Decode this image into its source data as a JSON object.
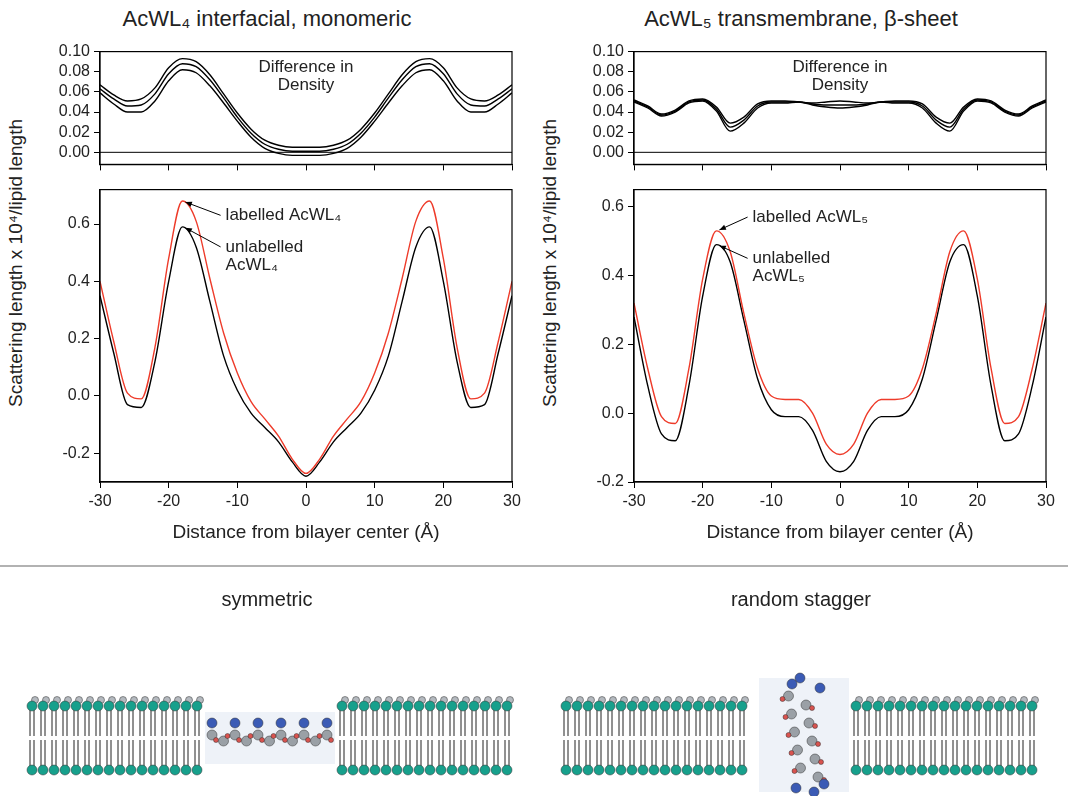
{
  "chart_data": [
    {
      "type": "line",
      "title": "AcWL₄ interfacial, monomeric",
      "annotation": "Difference in Density",
      "x": [
        -30,
        -28,
        -26,
        -24,
        -22,
        -20,
        -18,
        -16,
        -14,
        -12,
        -10,
        -8,
        -6,
        -4,
        -2,
        0,
        2,
        4,
        6,
        8,
        10,
        12,
        14,
        16,
        18,
        20,
        22,
        24,
        26,
        28,
        30
      ],
      "series": [
        {
          "color": "#000000",
          "values": [
            0.067,
            0.057,
            0.051,
            0.053,
            0.064,
            0.084,
            0.093,
            0.09,
            0.077,
            0.058,
            0.039,
            0.023,
            0.012,
            0.007,
            0.005,
            0.005,
            0.005,
            0.007,
            0.012,
            0.023,
            0.039,
            0.058,
            0.077,
            0.09,
            0.093,
            0.084,
            0.064,
            0.053,
            0.051,
            0.057,
            0.067
          ]
        },
        {
          "color": "#000000",
          "values": [
            0.063,
            0.053,
            0.046,
            0.047,
            0.058,
            0.078,
            0.088,
            0.085,
            0.072,
            0.054,
            0.035,
            0.019,
            0.008,
            0.003,
            0.001,
            0.001,
            0.001,
            0.003,
            0.008,
            0.019,
            0.035,
            0.054,
            0.072,
            0.085,
            0.088,
            0.078,
            0.058,
            0.047,
            0.046,
            0.053,
            0.063
          ]
        },
        {
          "color": "#000000",
          "values": [
            0.059,
            0.048,
            0.04,
            0.04,
            0.051,
            0.071,
            0.082,
            0.079,
            0.066,
            0.049,
            0.031,
            0.015,
            0.004,
            -0.001,
            -0.003,
            -0.003,
            -0.003,
            -0.001,
            0.004,
            0.015,
            0.031,
            0.049,
            0.066,
            0.079,
            0.082,
            0.071,
            0.051,
            0.04,
            0.04,
            0.048,
            0.059
          ]
        }
      ],
      "xlim": [
        -30,
        30
      ],
      "xticks": [
        -30,
        -20,
        -10,
        0,
        10,
        20,
        30
      ],
      "ylim": [
        -0.012,
        0.1
      ],
      "yticks": [
        {
          "value": 0,
          "label": "0.00"
        },
        0.02,
        0.04,
        0.06,
        0.08,
        {
          "value": 0.1,
          "label": "0.10"
        }
      ],
      "tick_labels": "y"
    },
    {
      "type": "line",
      "xlabel": "Distance from bilayer center (Å)",
      "ylabel": "Scattering length x 10⁴/lipid length",
      "x": [
        -30,
        -28,
        -26,
        -24,
        -22,
        -20,
        -18,
        -16,
        -14,
        -12,
        -10,
        -8,
        -6,
        -4,
        -2,
        0,
        2,
        4,
        6,
        8,
        10,
        12,
        14,
        16,
        18,
        20,
        22,
        24,
        26,
        28,
        30
      ],
      "series": [
        {
          "name": "labelled AcWL₄",
          "color": "#ee3b2a",
          "values": [
            0.4,
            0.19,
            0.01,
            -0.01,
            0.17,
            0.48,
            0.68,
            0.61,
            0.41,
            0.22,
            0.08,
            -0.02,
            -0.08,
            -0.14,
            -0.22,
            -0.27,
            -0.22,
            -0.14,
            -0.08,
            -0.02,
            0.08,
            0.22,
            0.41,
            0.61,
            0.68,
            0.48,
            0.17,
            -0.01,
            0.01,
            0.19,
            0.4
          ]
        },
        {
          "name": "unlabelled AcWL₄",
          "color": "#000000",
          "values": [
            0.35,
            0.15,
            -0.03,
            -0.04,
            0.12,
            0.4,
            0.59,
            0.52,
            0.33,
            0.14,
            0.02,
            -0.06,
            -0.11,
            -0.16,
            -0.23,
            -0.28,
            -0.23,
            -0.16,
            -0.11,
            -0.06,
            0.02,
            0.14,
            0.33,
            0.52,
            0.59,
            0.4,
            0.12,
            -0.04,
            -0.03,
            0.15,
            0.35
          ]
        }
      ],
      "xlim": [
        -30,
        30
      ],
      "xticks": [
        -30,
        -20,
        -10,
        0,
        10,
        20,
        30
      ],
      "ylim": [
        -0.3,
        0.72
      ],
      "yticks": [
        -0.2,
        {
          "value": 0,
          "label": "0.0"
        },
        0.2,
        0.4,
        0.6
      ]
    },
    {
      "type": "line",
      "title": "AcWL₅ transmembrane, β-sheet",
      "annotation": "Difference in Density",
      "x": [
        -30,
        -28,
        -26,
        -24,
        -22,
        -20,
        -18,
        -16,
        -14,
        -12,
        -10,
        -8,
        -6,
        -4,
        -2,
        0,
        2,
        4,
        6,
        8,
        10,
        12,
        14,
        16,
        18,
        20,
        22,
        24,
        26,
        28,
        30
      ],
      "series": [
        {
          "color": "#000000",
          "values": [
            0.052,
            0.046,
            0.038,
            0.042,
            0.051,
            0.053,
            0.045,
            0.029,
            0.035,
            0.048,
            0.051,
            0.051,
            0.05,
            0.049,
            0.05,
            0.051,
            0.05,
            0.049,
            0.05,
            0.051,
            0.051,
            0.048,
            0.035,
            0.029,
            0.045,
            0.053,
            0.051,
            0.042,
            0.038,
            0.046,
            0.052
          ]
        },
        {
          "color": "#000000",
          "values": [
            0.051,
            0.045,
            0.037,
            0.041,
            0.05,
            0.052,
            0.043,
            0.025,
            0.032,
            0.046,
            0.05,
            0.05,
            0.05,
            0.048,
            0.047,
            0.047,
            0.047,
            0.048,
            0.05,
            0.05,
            0.05,
            0.046,
            0.032,
            0.025,
            0.043,
            0.052,
            0.05,
            0.041,
            0.037,
            0.045,
            0.051
          ]
        },
        {
          "color": "#000000",
          "values": [
            0.05,
            0.044,
            0.036,
            0.04,
            0.049,
            0.051,
            0.041,
            0.021,
            0.029,
            0.044,
            0.049,
            0.049,
            0.05,
            0.047,
            0.045,
            0.044,
            0.045,
            0.047,
            0.05,
            0.049,
            0.049,
            0.044,
            0.029,
            0.021,
            0.041,
            0.051,
            0.049,
            0.04,
            0.036,
            0.044,
            0.05
          ]
        }
      ],
      "xlim": [
        -30,
        30
      ],
      "xticks": [
        -30,
        -20,
        -10,
        0,
        10,
        20,
        30
      ],
      "ylim": [
        -0.012,
        0.1
      ],
      "yticks": [
        {
          "value": 0,
          "label": "0.00"
        },
        0.02,
        0.04,
        0.06,
        0.08,
        {
          "value": 0.1,
          "label": "0.10"
        }
      ],
      "tick_labels": "y"
    },
    {
      "type": "line",
      "xlabel": "Distance from bilayer center (Å)",
      "ylabel": "Scattering length x 10⁴/lipid length",
      "x": [
        -30,
        -28,
        -26,
        -24,
        -22,
        -20,
        -18,
        -16,
        -14,
        -12,
        -10,
        -8,
        -6,
        -4,
        -2,
        0,
        2,
        4,
        6,
        8,
        10,
        12,
        14,
        16,
        18,
        20,
        22,
        24,
        26,
        28,
        30
      ],
      "series": [
        {
          "name": "labelled AcWL₅",
          "color": "#ee3b2a",
          "values": [
            0.32,
            0.13,
            -0.01,
            -0.03,
            0.13,
            0.39,
            0.53,
            0.47,
            0.29,
            0.13,
            0.05,
            0.04,
            0.04,
            0,
            -0.09,
            -0.12,
            -0.09,
            0,
            0.04,
            0.04,
            0.05,
            0.13,
            0.29,
            0.47,
            0.53,
            0.39,
            0.13,
            -0.03,
            -0.01,
            0.13,
            0.32
          ]
        },
        {
          "name": "unlabelled AcWL₅",
          "color": "#000000",
          "values": [
            0.28,
            0.08,
            -0.06,
            -0.08,
            0.08,
            0.34,
            0.49,
            0.44,
            0.27,
            0.1,
            0.01,
            -0.01,
            -0.01,
            -0.05,
            -0.14,
            -0.17,
            -0.14,
            -0.05,
            -0.01,
            -0.01,
            0.01,
            0.1,
            0.27,
            0.44,
            0.49,
            0.34,
            0.08,
            -0.08,
            -0.06,
            0.08,
            0.28
          ]
        }
      ],
      "xlim": [
        -30,
        30
      ],
      "xticks": [
        -30,
        -20,
        -10,
        0,
        10,
        20,
        30
      ],
      "ylim": [
        -0.2,
        0.65
      ],
      "yticks": [
        -0.2,
        {
          "value": 0,
          "label": "0.0"
        },
        0.2,
        0.4,
        0.6
      ]
    }
  ],
  "diagram": {
    "panels": [
      {
        "label": "symmetric"
      },
      {
        "label": "random stagger"
      }
    ]
  }
}
